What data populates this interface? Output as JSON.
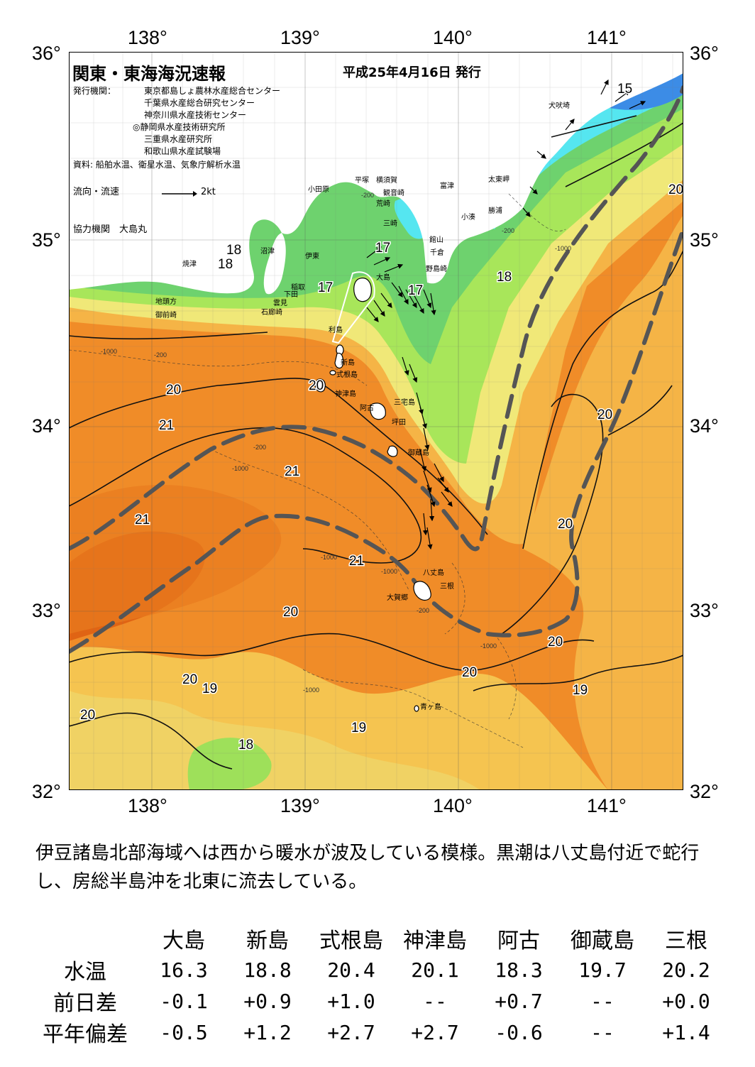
{
  "header": {
    "title": "関東・東海海況速報",
    "issue_date": "平成25年4月16日 発行",
    "publisher_label": "発行機関：",
    "publishers": [
      "東京都島しょ農林水産総合センター",
      "千葉県水産総合研究センター",
      "神奈川県水産技術センター",
      "◎静岡県水産技術研究所",
      "三重県水産研究所",
      "和歌山県水産試験場"
    ],
    "source": "資料: 船舶水温、衛星水温、気象庁解析水温",
    "flow_label": "流向・流速",
    "flow_scale": "2kt",
    "cooperation": "協力機関　大島丸"
  },
  "axes": {
    "lon_labels": [
      "138°",
      "139°",
      "140°",
      "141°"
    ],
    "lat_labels": [
      "36°",
      "35°",
      "34°",
      "33°",
      "32°"
    ]
  },
  "places": [
    "犬吠埼",
    "平塚",
    "横須賀",
    "小田原",
    "観音崎",
    "富津",
    "太東岬",
    "荒崎",
    "勝浦",
    "三崎",
    "小湊",
    "館山",
    "千倉",
    "沼津",
    "伊東",
    "野島崎",
    "焼津",
    "稲取",
    "下田",
    "大島",
    "地頭方",
    "雲見",
    "石廊崎",
    "御前崎",
    "利島",
    "新島",
    "式根島",
    "神津島",
    "三宅島",
    "阿古",
    "坪田",
    "御蔵島",
    "八丈島",
    "三根",
    "大賀郷",
    "青ヶ島"
  ],
  "contour_labels": [
    "15",
    "20",
    "18",
    "18",
    "17",
    "17",
    "17",
    "18",
    "20",
    "21",
    "21",
    "20",
    "21",
    "20",
    "21",
    "20",
    "20",
    "20",
    "20",
    "19",
    "20",
    "19",
    "18",
    "19",
    "20"
  ],
  "depth_labels": [
    "-200",
    "-1000"
  ],
  "legend_colors": {
    "cold_15": "#1e5adc",
    "t16": "#55e6f0",
    "t17": "#6ed26e",
    "t18": "#a8e65a",
    "t19": "#f0f078",
    "t20": "#f5b446",
    "t21": "#f08c28",
    "t22": "#e06414",
    "kuroshio_axis": "#555555",
    "land": "#ffffff"
  },
  "caption": "伊豆諸島北部海域へは西から暖水が波及している模様。黒潮は八丈島付近で蛇行し、房総半島沖を北東に流去している。",
  "table": {
    "columns": [
      "大島",
      "新島",
      "式根島",
      "神津島",
      "阿古",
      "御蔵島",
      "三根"
    ],
    "rows": [
      {
        "label": "水温",
        "values": [
          "16.3",
          "18.8",
          "20.4",
          "20.1",
          "18.3",
          "19.7",
          "20.2"
        ]
      },
      {
        "label": "前日差",
        "values": [
          "-0.1",
          "+0.9",
          "+1.0",
          "--",
          "+0.7",
          "--",
          "+0.0"
        ]
      },
      {
        "label": "平年偏差",
        "values": [
          "-0.5",
          "+1.2",
          "+2.7",
          "+2.7",
          "-0.6",
          "--",
          "+1.4"
        ]
      }
    ]
  }
}
